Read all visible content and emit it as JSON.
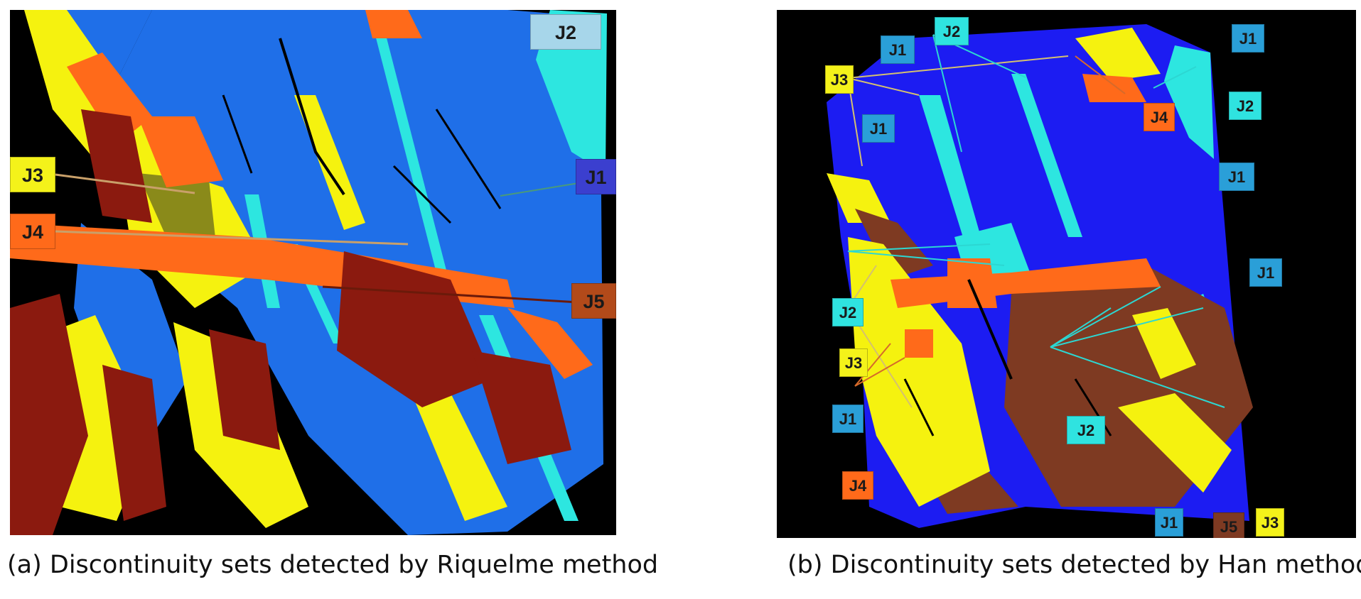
{
  "colors": {
    "J1": "#1f6fe8",
    "J1_b": "#1c1cf2",
    "J2": "#2de6e0",
    "J3": "#f5f20f",
    "J4": "#ff6a1a",
    "J5": "#8b1a0f",
    "J5_b": "#7e3a22",
    "tag_J1": "#3b3fcf",
    "tag_J1_b": "#2a9fd8",
    "tag_J2": "#a7d6ea",
    "tag_J2_b": "#2fe3e0",
    "tag_J3": "#f4f21a",
    "tag_J4": "#ff6a1a",
    "tag_J5": "#b24a1a",
    "background": "#000000"
  },
  "panel_a": {
    "labels": {
      "j2": "J2",
      "j1": "J1",
      "j3": "J3",
      "j4": "J4",
      "j5": "J5"
    }
  },
  "panel_b": {
    "labels": {
      "j1_top_left": "J1",
      "j2_top": "J2",
      "j1_top_right": "J1",
      "j3_top": "J3",
      "j4_top": "J4",
      "j2_right": "J2",
      "j1_left": "J1",
      "j1_right": "J1",
      "j1_mid_right": "J1",
      "j2_left": "J2",
      "j3_left": "J3",
      "j1_lower_left": "J1",
      "j2_center": "J2",
      "j4_left": "J4",
      "j1_bottom": "J1",
      "j5_bottom": "J5",
      "j3_bottom": "J3"
    }
  },
  "captions": {
    "a": "(a) Discontinuity sets detected by Riquelme method",
    "b": "(b) Discontinuity sets detected by Han method"
  }
}
